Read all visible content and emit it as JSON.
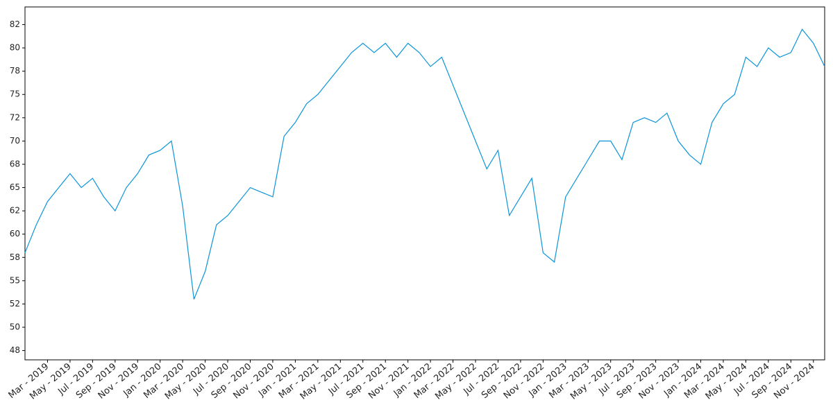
{
  "chart_data": {
    "type": "line",
    "x": [
      "2019-01",
      "2019-02",
      "2019-03",
      "2019-04",
      "2019-05",
      "2019-06",
      "2019-07",
      "2019-08",
      "2019-09",
      "2019-10",
      "2019-11",
      "2019-12",
      "2020-01",
      "2020-02",
      "2020-03",
      "2020-04",
      "2020-05",
      "2020-06",
      "2020-07",
      "2020-08",
      "2020-09",
      "2020-10",
      "2020-11",
      "2020-12",
      "2021-01",
      "2021-02",
      "2021-03",
      "2021-04",
      "2021-05",
      "2021-06",
      "2021-07",
      "2021-08",
      "2021-09",
      "2021-10",
      "2021-11",
      "2021-12",
      "2022-01",
      "2022-02",
      "2022-03",
      "2022-04",
      "2022-05",
      "2022-06",
      "2022-07",
      "2022-08",
      "2022-09",
      "2022-10",
      "2022-11",
      "2022-12",
      "2023-01",
      "2023-02",
      "2023-03",
      "2023-04",
      "2023-05",
      "2023-06",
      "2023-07",
      "2023-08",
      "2023-09",
      "2023-10",
      "2023-11",
      "2023-12",
      "2024-01",
      "2024-02",
      "2024-03",
      "2024-04",
      "2024-05",
      "2024-06",
      "2024-07",
      "2024-08",
      "2024-09",
      "2024-10",
      "2024-11",
      "2024-12"
    ],
    "series": [
      {
        "color": "#0b95d9",
        "values": [
          58,
          61,
          63.5,
          65,
          66.5,
          65,
          66,
          64,
          62.5,
          65,
          66.5,
          68.5,
          69,
          70,
          63,
          53,
          56,
          61,
          62,
          63.5,
          65,
          64.5,
          64,
          70.5,
          72,
          74,
          75,
          76.5,
          78,
          79.5,
          80.5,
          79.5,
          80.5,
          79,
          80.5,
          79.5,
          78,
          79,
          76,
          73,
          70,
          67,
          69,
          62,
          64,
          66,
          58,
          57,
          64,
          66,
          68,
          70,
          70,
          68,
          72,
          72.5,
          72,
          73,
          70,
          68.5,
          67.5,
          72,
          74,
          75,
          79,
          78,
          80,
          79,
          79.5,
          82,
          80.5,
          78
        ]
      }
    ],
    "xlim": [
      "2019-01",
      "2024-12"
    ],
    "ylim": [
      46.5,
      84.4
    ],
    "yticks": [
      {
        "value": 47.5,
        "label": "48"
      },
      50,
      {
        "value": 52.5,
        "label": "52"
      },
      55,
      {
        "value": 57.5,
        "label": "58"
      },
      60,
      {
        "value": 62.5,
        "label": "62"
      },
      65,
      {
        "value": 67.5,
        "label": "68"
      },
      70,
      {
        "value": 72.5,
        "label": "72"
      },
      75,
      {
        "value": 77.5,
        "label": "78"
      },
      80,
      {
        "value": 82.5,
        "label": "82"
      }
    ],
    "xticks": [
      {
        "value": "2019-03",
        "label": "Mar - 2019"
      },
      {
        "value": "2019-05",
        "label": "May - 2019"
      },
      {
        "value": "2019-07",
        "label": "Jul - 2019"
      },
      {
        "value": "2019-09",
        "label": "Sep - 2019"
      },
      {
        "value": "2019-11",
        "label": "Nov - 2019"
      },
      {
        "value": "2020-01",
        "label": "Jan - 2020"
      },
      {
        "value": "2020-03",
        "label": "Mar - 2020"
      },
      {
        "value": "2020-05",
        "label": "May - 2020"
      },
      {
        "value": "2020-07",
        "label": "Jul - 2020"
      },
      {
        "value": "2020-09",
        "label": "Sep - 2020"
      },
      {
        "value": "2020-11",
        "label": "Nov - 2020"
      },
      {
        "value": "2021-01",
        "label": "Jan - 2021"
      },
      {
        "value": "2021-03",
        "label": "Mar - 2021"
      },
      {
        "value": "2021-05",
        "label": "May - 2021"
      },
      {
        "value": "2021-07",
        "label": "Jul - 2021"
      },
      {
        "value": "2021-09",
        "label": "Sep - 2021"
      },
      {
        "value": "2021-11",
        "label": "Nov - 2021"
      },
      {
        "value": "2022-01",
        "label": "Jan - 2022"
      },
      {
        "value": "2022-03",
        "label": "Mar - 2022"
      },
      {
        "value": "2022-05",
        "label": "May - 2022"
      },
      {
        "value": "2022-07",
        "label": "Jul - 2022"
      },
      {
        "value": "2022-09",
        "label": "Sep - 2022"
      },
      {
        "value": "2022-11",
        "label": "Nov - 2022"
      },
      {
        "value": "2023-01",
        "label": "Jan - 2023"
      },
      {
        "value": "2023-03",
        "label": "Mar - 2023"
      },
      {
        "value": "2023-05",
        "label": "May - 2023"
      },
      {
        "value": "2023-07",
        "label": "Jul - 2023"
      },
      {
        "value": "2023-09",
        "label": "Sep - 2023"
      },
      {
        "value": "2023-11",
        "label": "Nov - 2023"
      },
      {
        "value": "2024-01",
        "label": "Jan - 2024"
      },
      {
        "value": "2024-03",
        "label": "Mar - 2024"
      },
      {
        "value": "2024-05",
        "label": "May - 2024"
      },
      {
        "value": "2024-07",
        "label": "Jul - 2024"
      },
      {
        "value": "2024-09",
        "label": "Sep - 2024"
      },
      {
        "value": "2024-11",
        "label": "Nov - 2024"
      }
    ]
  }
}
